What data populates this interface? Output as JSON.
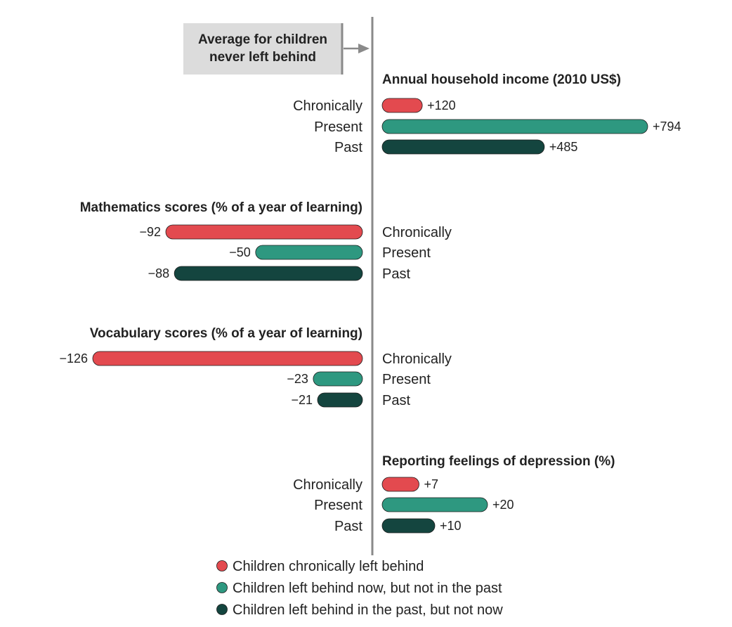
{
  "chart_data": {
    "type": "bar",
    "orientation": "horizontal-diverging",
    "callout": [
      "Average for children",
      "never left behind"
    ],
    "categories": [
      "Chronically",
      "Present",
      "Past"
    ],
    "colors": {
      "Chronically": "#e34a4f",
      "Present": "#2e9880",
      "Past": "#14453f"
    },
    "panels": [
      {
        "title": "Annual household income (2010 US$)",
        "values": [
          120,
          794,
          485
        ],
        "labels": [
          "+120",
          "+794",
          "+485"
        ]
      },
      {
        "title": "Mathematics scores (% of a year of learning)",
        "values": [
          -92,
          -50,
          -88
        ],
        "labels": [
          "−92",
          "−50",
          "−88"
        ]
      },
      {
        "title": "Vocabulary scores (% of a year of learning)",
        "values": [
          -126,
          -23,
          -21
        ],
        "labels": [
          "−126",
          "−23",
          "−21"
        ]
      },
      {
        "title": "Reporting feelings of depression (%)",
        "values": [
          7,
          20,
          10
        ],
        "labels": [
          "+7",
          "+20",
          "+10"
        ]
      }
    ],
    "legend": [
      {
        "label": "Children chronically left behind",
        "color": "#e34a4f"
      },
      {
        "label": "Children left behind now, but not in the past",
        "color": "#2e9880"
      },
      {
        "label": "Children left behind in the past, but not now",
        "color": "#14453f"
      }
    ],
    "legend_position": "bottom"
  }
}
